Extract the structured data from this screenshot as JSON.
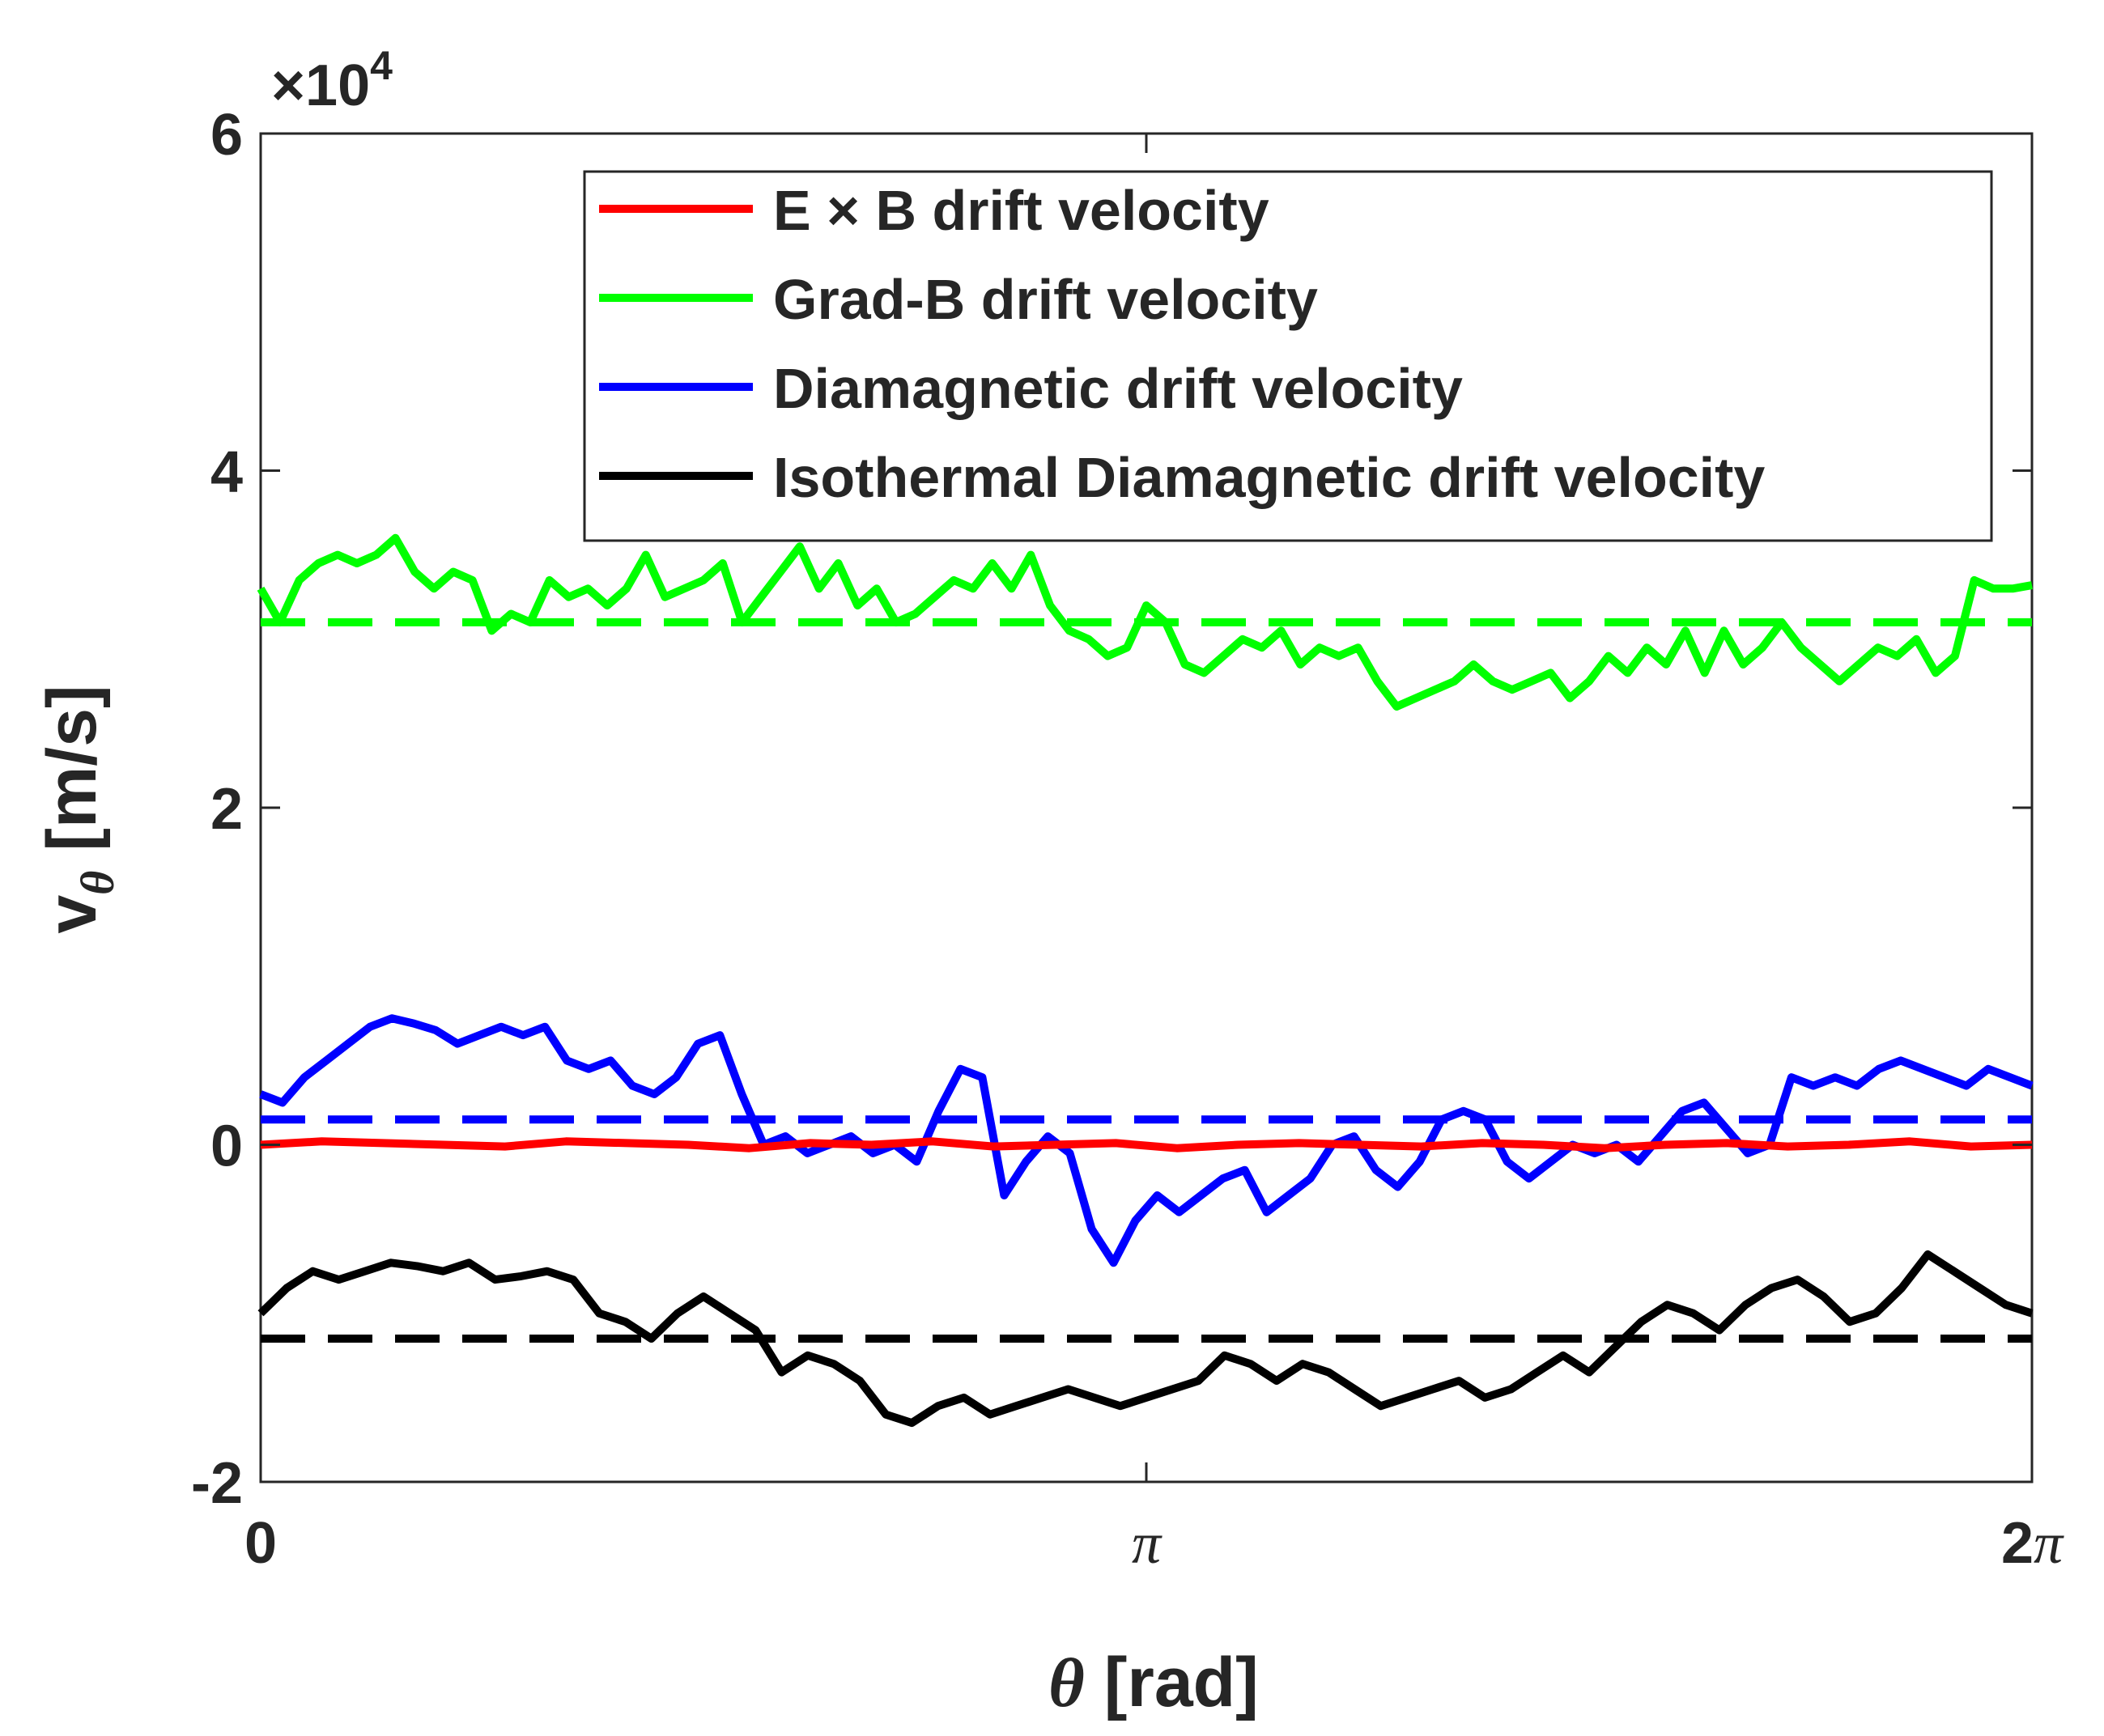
{
  "chart_data": {
    "type": "line",
    "title": "",
    "xlabel": "θ [rad]",
    "ylabel": "v_θ [m/s]",
    "ylabel_main": "v",
    "ylabel_sub": "θ",
    "ylabel_unit": " [m/s]",
    "xlabel_symbol": "θ",
    "xlabel_unit": " [rad]",
    "xlim": [
      0,
      6.2832
    ],
    "ylim": [
      -2,
      6
    ],
    "y_exponent_label": "×10",
    "y_exponent_power": "4",
    "xticks": [
      {
        "value": 0,
        "label": "0"
      },
      {
        "value": 3.1416,
        "label": "π"
      },
      {
        "value": 6.2832,
        "label": "2π"
      }
    ],
    "yticks": [
      {
        "value": -2,
        "label": "-2"
      },
      {
        "value": 0,
        "label": "0"
      },
      {
        "value": 2,
        "label": "2"
      },
      {
        "value": 4,
        "label": "4"
      },
      {
        "value": 6,
        "label": "6"
      }
    ],
    "grid": false,
    "legend_position": "top-right",
    "series": [
      {
        "name": "E × B drift velocity",
        "color": "#ff0000",
        "values": [
          0.0,
          0.02,
          0.01,
          0.0,
          -0.01,
          0.02,
          0.01,
          0.0,
          -0.02,
          0.01,
          0.0,
          0.02,
          -0.01,
          0.0,
          0.01,
          -0.02,
          0.0,
          0.01,
          0.0,
          -0.01,
          0.01,
          0.0,
          -0.02,
          0.0,
          0.01,
          -0.01,
          0.0,
          0.02,
          -0.01,
          0.0
        ]
      },
      {
        "name": "Grad-B drift velocity",
        "color": "#00ff00",
        "values": [
          3.3,
          3.1,
          3.35,
          3.45,
          3.5,
          3.45,
          3.5,
          3.6,
          3.4,
          3.3,
          3.4,
          3.35,
          3.05,
          3.15,
          3.1,
          3.35,
          3.25,
          3.3,
          3.2,
          3.3,
          3.5,
          3.25,
          3.3,
          3.35,
          3.45,
          3.1,
          3.25,
          3.4,
          3.55,
          3.3,
          3.45,
          3.2,
          3.3,
          3.1,
          3.15,
          3.25,
          3.35,
          3.3,
          3.45,
          3.3,
          3.5,
          3.2,
          3.05,
          3.0,
          2.9,
          2.95,
          3.2,
          3.1,
          2.85,
          2.8,
          2.9,
          3.0,
          2.95,
          3.05,
          2.85,
          2.95,
          2.9,
          2.95,
          2.75,
          2.6,
          2.65,
          2.7,
          2.75,
          2.85,
          2.75,
          2.7,
          2.75,
          2.8,
          2.65,
          2.75,
          2.9,
          2.8,
          2.95,
          2.85,
          3.05,
          2.8,
          3.05,
          2.85,
          2.95,
          3.1,
          2.95,
          2.85,
          2.75,
          2.85,
          2.95,
          2.9,
          3.0,
          2.8,
          2.9,
          3.35,
          3.3,
          3.3,
          3.32
        ]
      },
      {
        "name": "Diamagnetic drift velocity",
        "color": "#0000ff",
        "values": [
          0.3,
          0.25,
          0.4,
          0.5,
          0.6,
          0.7,
          0.75,
          0.72,
          0.68,
          0.6,
          0.65,
          0.7,
          0.65,
          0.7,
          0.5,
          0.45,
          0.5,
          0.35,
          0.3,
          0.4,
          0.6,
          0.65,
          0.3,
          0.0,
          0.05,
          -0.05,
          0.0,
          0.05,
          -0.05,
          0.0,
          -0.1,
          0.2,
          0.45,
          0.4,
          -0.3,
          -0.1,
          0.05,
          -0.05,
          -0.5,
          -0.7,
          -0.45,
          -0.3,
          -0.4,
          -0.3,
          -0.2,
          -0.15,
          -0.4,
          -0.3,
          -0.2,
          0.0,
          0.05,
          -0.15,
          -0.25,
          -0.1,
          0.15,
          0.2,
          0.15,
          -0.1,
          -0.2,
          -0.1,
          0.0,
          -0.05,
          0.0,
          -0.1,
          0.05,
          0.2,
          0.25,
          0.1,
          -0.05,
          0.0,
          0.4,
          0.35,
          0.4,
          0.35,
          0.45,
          0.5,
          0.45,
          0.4,
          0.35,
          0.45,
          0.4,
          0.35
        ]
      },
      {
        "name": "Isothermal Diamagnetic drift velocity",
        "color": "#000000",
        "values": [
          -1.0,
          -0.85,
          -0.75,
          -0.8,
          -0.75,
          -0.7,
          -0.72,
          -0.75,
          -0.7,
          -0.8,
          -0.78,
          -0.75,
          -0.8,
          -1.0,
          -1.05,
          -1.15,
          -1.0,
          -0.9,
          -1.0,
          -1.1,
          -1.35,
          -1.25,
          -1.3,
          -1.4,
          -1.6,
          -1.65,
          -1.55,
          -1.5,
          -1.6,
          -1.55,
          -1.5,
          -1.45,
          -1.5,
          -1.55,
          -1.5,
          -1.45,
          -1.4,
          -1.25,
          -1.3,
          -1.4,
          -1.3,
          -1.35,
          -1.45,
          -1.55,
          -1.5,
          -1.45,
          -1.4,
          -1.5,
          -1.45,
          -1.35,
          -1.25,
          -1.35,
          -1.2,
          -1.05,
          -0.95,
          -1.0,
          -1.1,
          -0.95,
          -0.85,
          -0.8,
          -0.9,
          -1.05,
          -1.0,
          -0.85,
          -0.65,
          -0.75,
          -0.85,
          -0.95,
          -1.0
        ]
      }
    ],
    "reference_lines": [
      {
        "series": "Grad-B drift velocity",
        "color": "#00ff00",
        "value": 3.1
      },
      {
        "series": "Diamagnetic drift velocity",
        "color": "#0000ff",
        "value": 0.15
      },
      {
        "series": "Isothermal Diamagnetic drift velocity",
        "color": "#000000",
        "value": -1.15
      }
    ]
  }
}
